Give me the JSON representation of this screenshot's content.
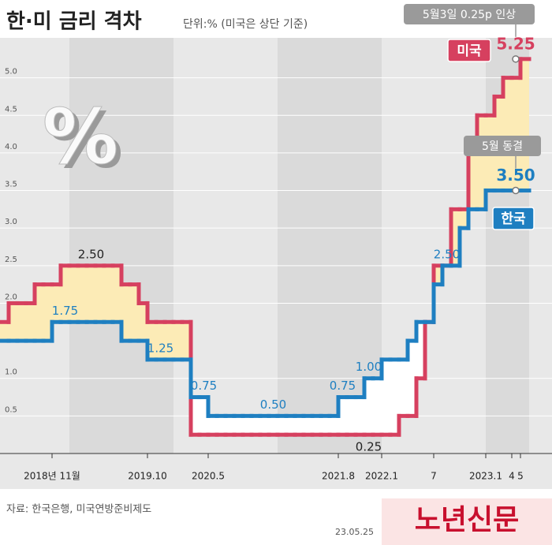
{
  "title": "한·미 금리 격차",
  "subtitle": "단위:% (미국은 상단 기준)",
  "icon_text": "%",
  "source": "자료: 한국은행, 미국연방준비제도",
  "date": "23.05.25",
  "logo": "노년신문",
  "chart_data": {
    "type": "line",
    "line_style": "step",
    "categories": [
      null,
      null,
      null,
      null,
      null,
      null,
      "2018년 11월",
      null,
      null,
      null,
      null,
      null,
      null,
      null,
      null,
      null,
      null,
      "2019.10",
      null,
      null,
      null,
      null,
      null,
      null,
      "2020.5",
      null,
      null,
      null,
      null,
      null,
      null,
      null,
      null,
      null,
      null,
      null,
      null,
      null,
      null,
      "2021.8",
      null,
      null,
      null,
      null,
      "2022.1",
      null,
      null,
      null,
      null,
      null,
      "7",
      null,
      null,
      null,
      null,
      null,
      "2023.1",
      null,
      null,
      "4",
      "5"
    ],
    "series": [
      {
        "name": "미국",
        "color": "#d6405f",
        "values": [
          1.75,
          2,
          2,
          2,
          2.25,
          2.25,
          2.25,
          2.5,
          2.5,
          2.5,
          2.5,
          2.5,
          2.5,
          2.5,
          2.25,
          2.25,
          2,
          1.75,
          1.75,
          1.75,
          1.75,
          1.75,
          0.25,
          0.25,
          0.25,
          0.25,
          0.25,
          0.25,
          0.25,
          0.25,
          0.25,
          0.25,
          0.25,
          0.25,
          0.25,
          0.25,
          0.25,
          0.25,
          0.25,
          0.25,
          0.25,
          0.25,
          0.25,
          0.25,
          0.25,
          0.25,
          0.5,
          0.5,
          1,
          1.75,
          2.5,
          2.5,
          3.25,
          3.25,
          4,
          4.5,
          4.5,
          4.75,
          5,
          5,
          5.25
        ],
        "value_labels": [
          null,
          null,
          null,
          null,
          null,
          null,
          null,
          null,
          null,
          null,
          "2.50",
          null,
          null,
          null,
          null,
          null,
          null,
          null,
          null,
          null,
          null,
          null,
          null,
          null,
          null,
          null,
          null,
          null,
          null,
          null,
          null,
          null,
          null,
          null,
          null,
          null,
          null,
          null,
          null,
          null,
          null,
          null,
          "0.25",
          null,
          null,
          null,
          null,
          null,
          null,
          null,
          null,
          null,
          null,
          null,
          null,
          null,
          null,
          null,
          null,
          null,
          "5.25"
        ]
      },
      {
        "name": "한국",
        "color": "#1e7fc1",
        "values": [
          1.5,
          1.5,
          1.5,
          1.5,
          1.5,
          1.5,
          1.75,
          1.75,
          1.75,
          1.75,
          1.75,
          1.75,
          1.75,
          1.75,
          1.5,
          1.5,
          1.5,
          1.25,
          1.25,
          1.25,
          1.25,
          1.25,
          0.75,
          0.75,
          0.5,
          0.5,
          0.5,
          0.5,
          0.5,
          0.5,
          0.5,
          0.5,
          0.5,
          0.5,
          0.5,
          0.5,
          0.5,
          0.5,
          0.5,
          0.75,
          0.75,
          0.75,
          1,
          1,
          1.25,
          1.25,
          1.25,
          1.5,
          1.75,
          1.75,
          2.25,
          2.5,
          2.5,
          3,
          3.25,
          3.25,
          3.5,
          3.5,
          3.5,
          3.5,
          3.5
        ],
        "value_labels": [
          null,
          null,
          null,
          null,
          null,
          null,
          null,
          "1.75",
          null,
          null,
          null,
          null,
          null,
          null,
          null,
          null,
          null,
          null,
          "1.25",
          null,
          null,
          null,
          null,
          "0.75",
          null,
          null,
          null,
          null,
          null,
          null,
          null,
          "0.50",
          null,
          null,
          null,
          null,
          null,
          null,
          null,
          "0.75",
          null,
          null,
          "1.00",
          null,
          null,
          null,
          null,
          null,
          null,
          null,
          null,
          "2.50",
          null,
          null,
          null,
          null,
          null,
          null,
          null,
          null,
          "3.50"
        ]
      }
    ],
    "ylim": [
      0,
      5.5
    ],
    "yticks": [
      0.5,
      {
        "value": 1,
        "label": "1.0"
      },
      {
        "value": 2,
        "label": "2.0"
      },
      2.5,
      {
        "value": 3,
        "label": "3.0"
      },
      3.5,
      {
        "value": 4,
        "label": "4.0"
      },
      4.5,
      {
        "value": 5,
        "label": "5.0"
      }
    ],
    "grid": true,
    "gap_fill_color": "#fcebb6",
    "annotations": [
      "5월3일 0.25p 인상",
      "5월 동결"
    ]
  }
}
